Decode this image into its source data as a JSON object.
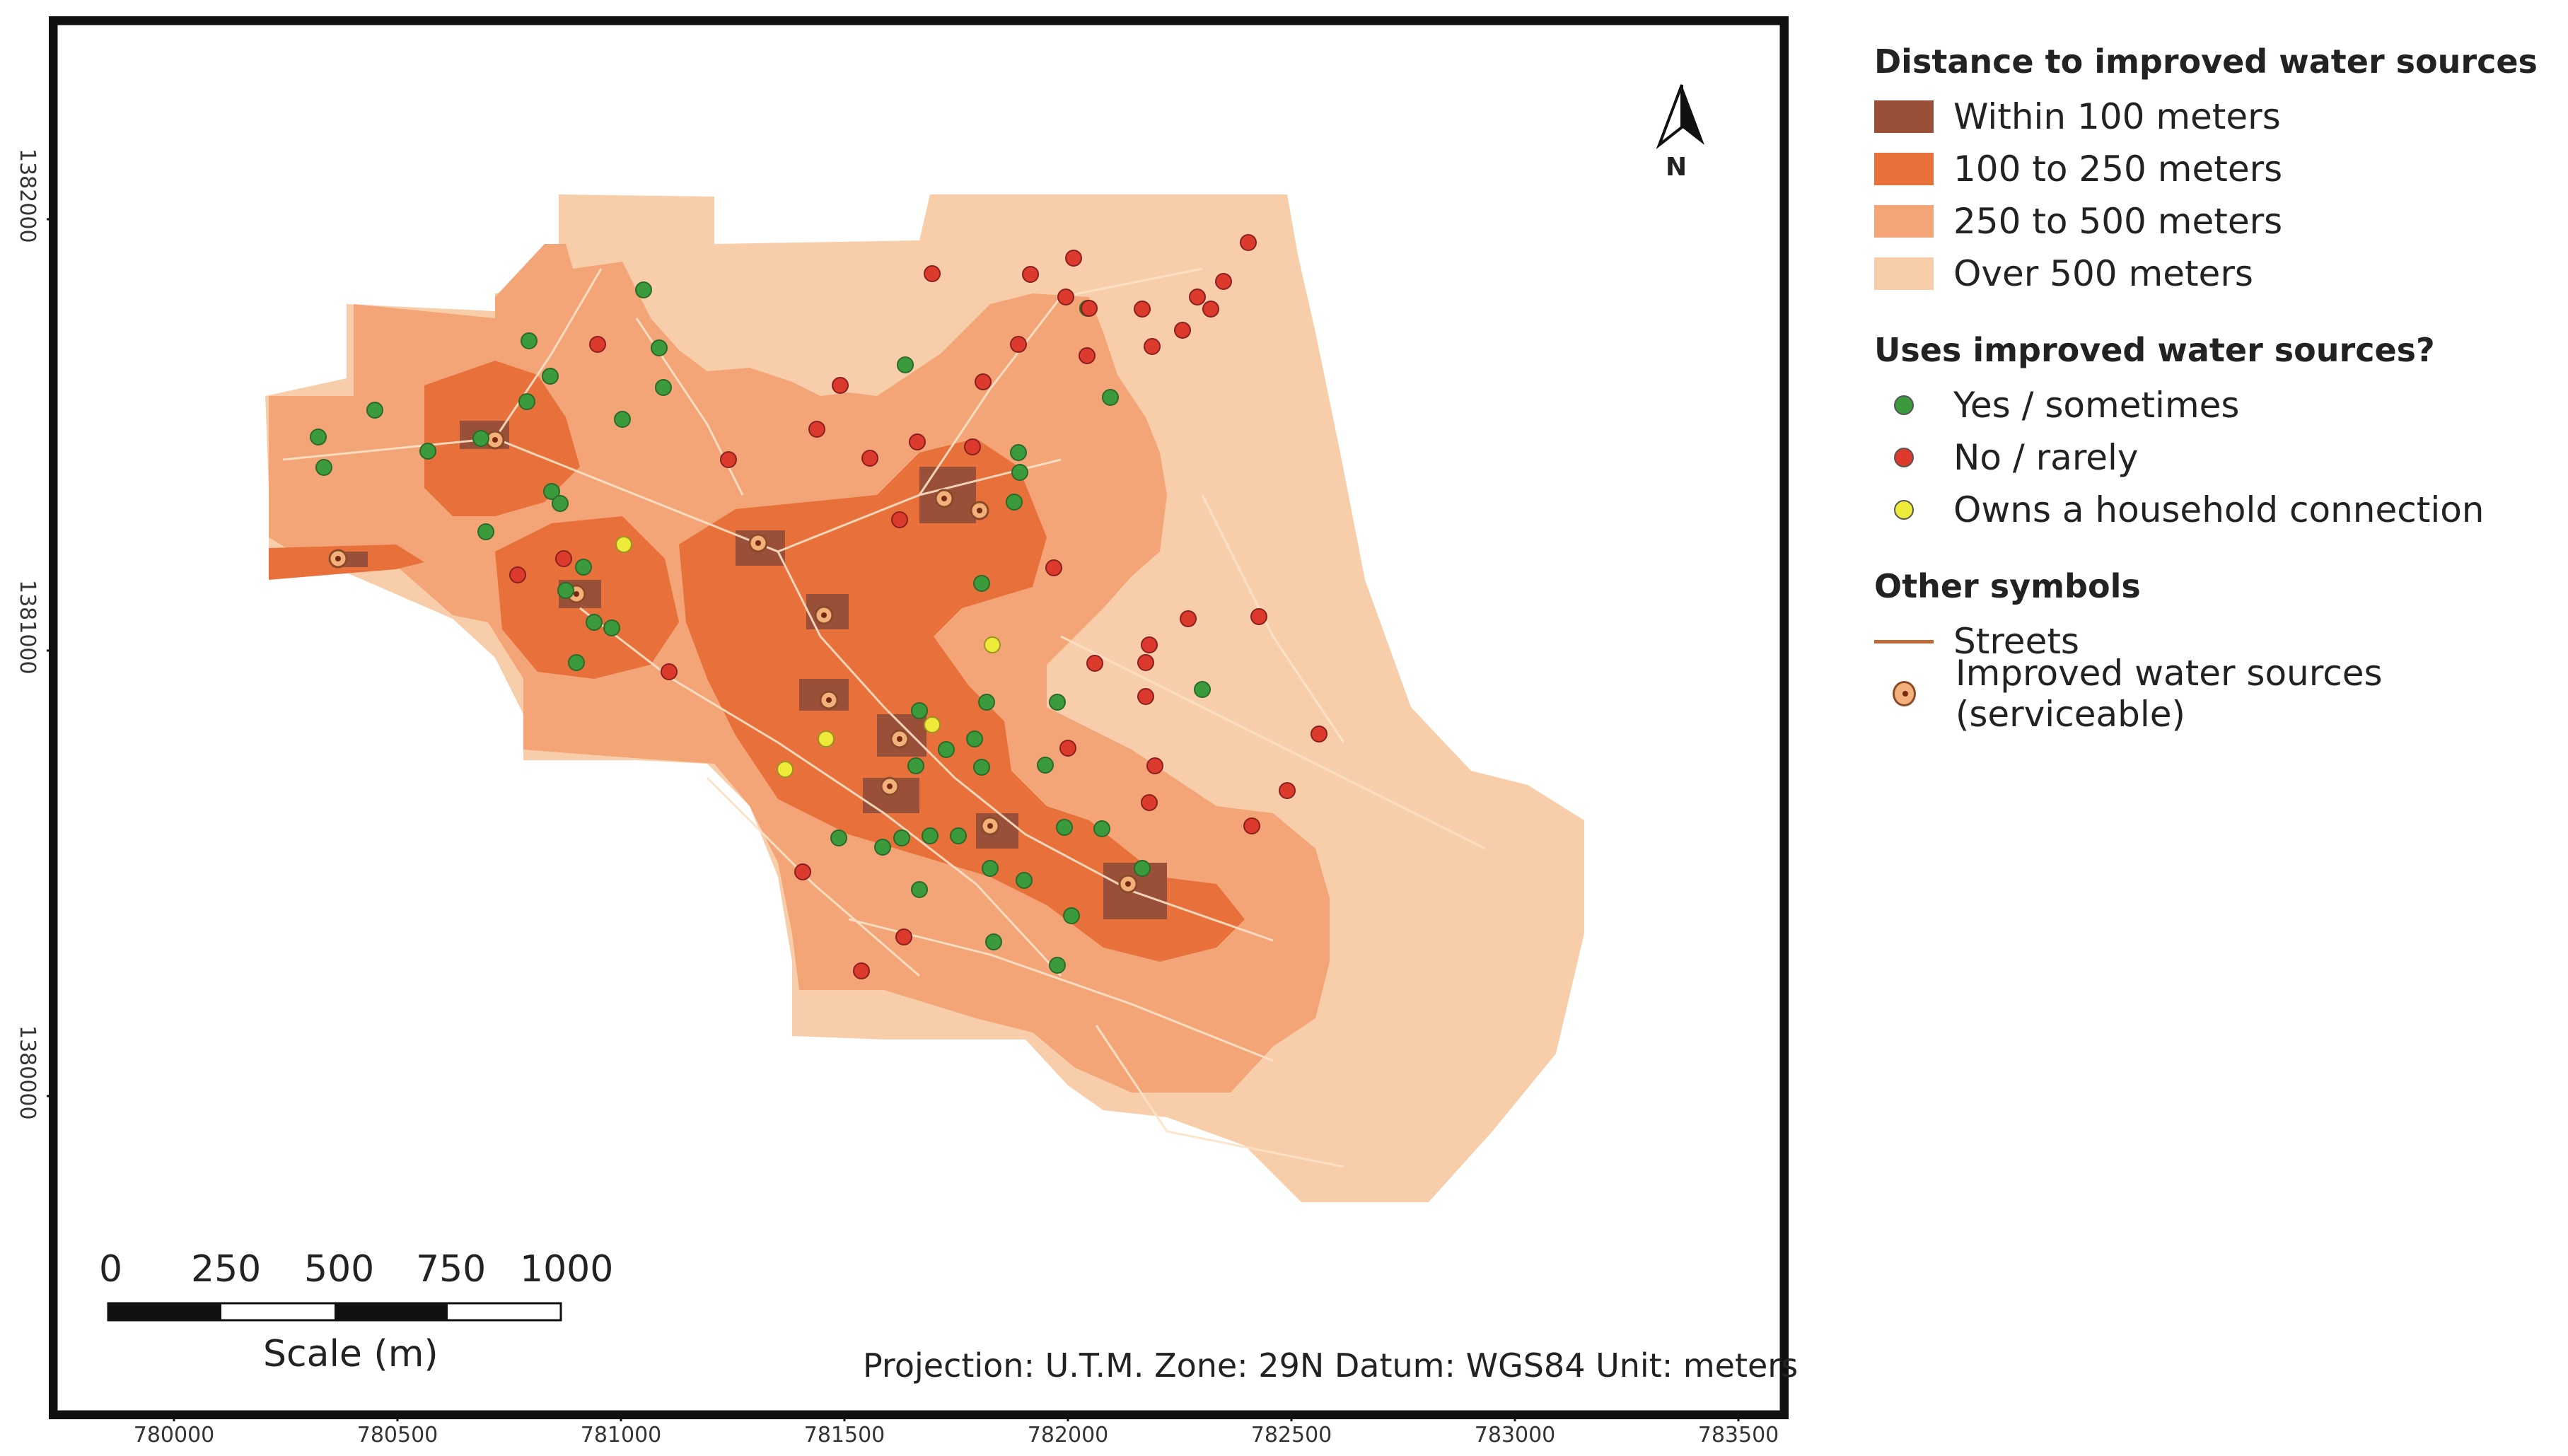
{
  "map": {
    "projection_text": "Projection: U.T.M.  Zone: 29N  Datum: WGS84  Unit: meters",
    "north_label": "N",
    "x_ticks": [
      "780000",
      "780500",
      "781000",
      "781500",
      "782000",
      "782500",
      "783000",
      "783500"
    ],
    "y_ticks": [
      "1382000",
      "1381000",
      "1380000"
    ],
    "scale": {
      "ticks": [
        "0",
        "250",
        "500",
        "750",
        "1000"
      ],
      "label": "Scale (m)"
    }
  },
  "legend": {
    "distance": {
      "title": "Distance to improved water sources",
      "items": [
        {
          "label": "Within 100 meters",
          "color": "#9a5038"
        },
        {
          "label": "100 to 250 meters",
          "color": "#e8703a"
        },
        {
          "label": "250 to 500 meters",
          "color": "#f3a577"
        },
        {
          "label": "Over 500 meters",
          "color": "#f8ceaa"
        }
      ]
    },
    "uses": {
      "title": "Uses improved water sources?",
      "items": [
        {
          "label": "Yes / sometimes",
          "color": "#3b9a3c"
        },
        {
          "label": "No / rarely",
          "color": "#dd3a2e"
        },
        {
          "label": "Owns a household connection",
          "color": "#eeea3a"
        }
      ]
    },
    "other": {
      "title": "Other symbols",
      "items": [
        {
          "label": "Streets",
          "icon": "street-line"
        },
        {
          "label": "Improved water sources (serviceable)",
          "icon": "water-source-icon"
        }
      ]
    }
  }
}
